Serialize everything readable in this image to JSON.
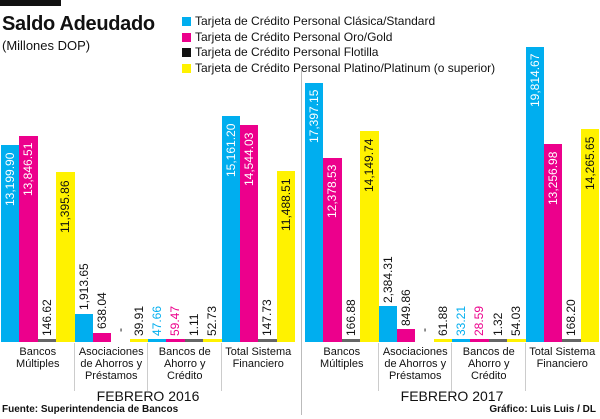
{
  "title": "Saldo Adeudado",
  "subtitle": "(Millones DOP)",
  "legend": [
    {
      "label": "Tarjeta de Crédito Personal Clásica/Standard",
      "color": "#00aeef"
    },
    {
      "label": "Tarjeta de Crédito Personal Oro/Gold",
      "color": "#ec008c"
    },
    {
      "label": "Tarjeta de Crédito Personal Flotilla",
      "color": "#111111"
    },
    {
      "label": "Tarjeta de Crédito Personal Platino/Platinum (o superior)",
      "color": "#fff200"
    }
  ],
  "periods": [
    "FEBRERO 2016",
    "FEBRERO 2017"
  ],
  "categories": [
    [
      "Bancos",
      "Múltiples"
    ],
    [
      "Asociaciones",
      "de Ahorros y",
      "Préstamos"
    ],
    [
      "Bancos de",
      "Ahorro y",
      "Crédito"
    ],
    [
      "Total Sistema",
      "Financiero"
    ]
  ],
  "footer": {
    "source": "Fuente: Superintendencia de Bancos",
    "credit": "Gráfico: Luis Luis / DL"
  },
  "chart_data": {
    "type": "bar",
    "title": "Saldo Adeudado",
    "subtitle": "(Millones DOP)",
    "ylabel": "Millones DOP",
    "grid": false,
    "legend_position": "top",
    "categories": [
      "Bancos Múltiples",
      "Asociaciones de Ahorros y Préstamos",
      "Bancos de Ahorro y Crédito",
      "Total Sistema Financiero"
    ],
    "groups": [
      {
        "period": "FEBRERO 2016",
        "series": [
          {
            "name": "Tarjeta de Crédito Personal Clásica/Standard",
            "values": [
              13199.9,
              1913.65,
              47.66,
              15161.2
            ],
            "labels": [
              "13,199.90",
              "1,913.65",
              "47.66",
              "15,161.20"
            ]
          },
          {
            "name": "Tarjeta de Crédito Personal Oro/Gold",
            "values": [
              13846.51,
              638.04,
              59.47,
              14544.03
            ],
            "labels": [
              "13,846.51",
              "638.04",
              "59.47",
              "14,544.03"
            ]
          },
          {
            "name": "Tarjeta de Crédito Personal Flotilla",
            "values": [
              146.62,
              null,
              1.11,
              147.73
            ],
            "labels": [
              "146.62",
              "-",
              "1.11",
              "147.73"
            ]
          },
          {
            "name": "Tarjeta de Crédito Personal Platino/Platinum (o superior)",
            "values": [
              11395.86,
              39.91,
              52.73,
              11488.51
            ],
            "labels": [
              "11,395.86",
              "39.91",
              "52.73",
              "11,488.51"
            ]
          }
        ]
      },
      {
        "period": "FEBRERO 2017",
        "series": [
          {
            "name": "Tarjeta de Crédito Personal Clásica/Standard",
            "values": [
              17397.15,
              2384.31,
              33.21,
              19814.67
            ],
            "labels": [
              "17,397.15",
              "2,384.31",
              "33.21",
              "19,814.67"
            ]
          },
          {
            "name": "Tarjeta de Crédito Personal Oro/Gold",
            "values": [
              12378.53,
              849.86,
              28.59,
              13256.98
            ],
            "labels": [
              "12,378.53",
              "849.86",
              "28.59",
              "13,256.98"
            ]
          },
          {
            "name": "Tarjeta de Crédito Personal Flotilla",
            "values": [
              166.88,
              null,
              1.32,
              168.2
            ],
            "labels": [
              "166.88",
              "-",
              "1.32",
              "168.20"
            ]
          },
          {
            "name": "Tarjeta de Crédito Personal Platino/Platinum (o superior)",
            "values": [
              14149.74,
              61.88,
              54.03,
              14265.65
            ],
            "labels": [
              "14,149.74",
              "61.88",
              "54.03",
              "14,265.65"
            ]
          }
        ]
      }
    ]
  }
}
